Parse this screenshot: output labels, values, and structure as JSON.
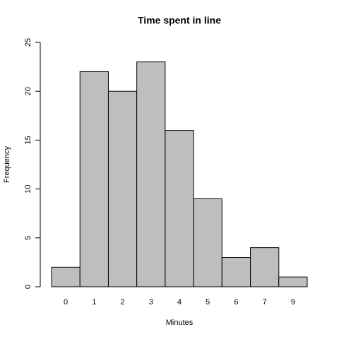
{
  "chart_data": {
    "type": "bar",
    "title": "Time spent in line",
    "x_label": "Minutes",
    "y_label": "Frequency",
    "categories": [
      "0",
      "1",
      "2",
      "3",
      "4",
      "5",
      "6",
      "7",
      "9"
    ],
    "values": [
      2,
      22,
      20,
      23,
      16,
      9,
      3,
      4,
      1
    ],
    "color": "#bebebe",
    "ylim": [
      0,
      25
    ],
    "yticks": [
      0,
      5,
      10,
      15,
      20,
      25
    ],
    "grid": false
  }
}
